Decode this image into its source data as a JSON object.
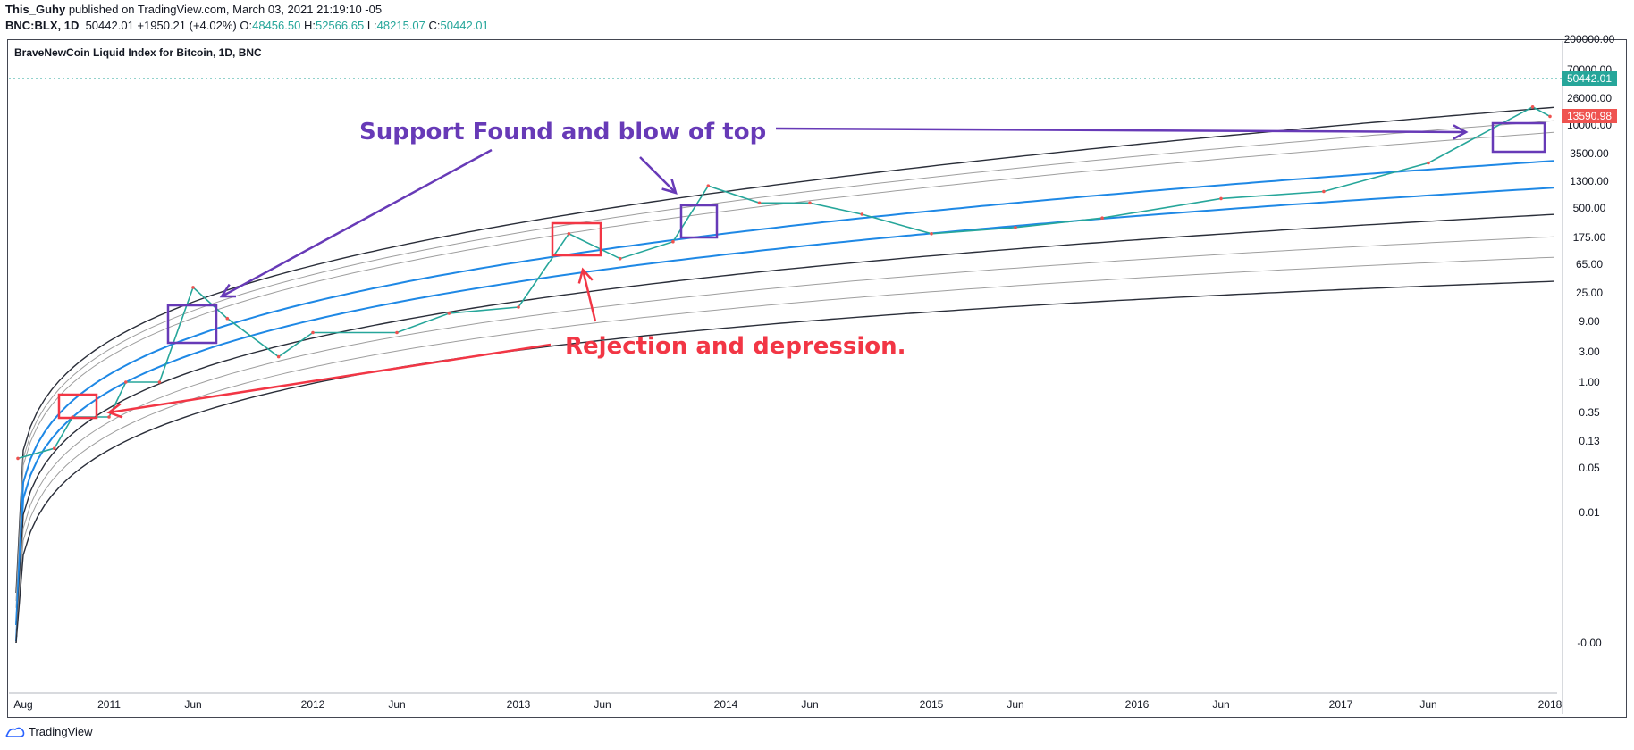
{
  "header": {
    "author": "This_Guhy",
    "published": "published on TradingView.com, March 03, 2021 21:19:10 -05",
    "symbol": "BNC:BLX, 1D",
    "last": "50442.01",
    "change": "+1950.21 (+4.02%)",
    "o_label": "O:",
    "o_val": "48456.50",
    "h_label": "H:",
    "h_val": "52566.65",
    "l_label": "L:",
    "l_val": "48215.07",
    "c_label": "C:",
    "c_val": "50442.01"
  },
  "chart_title": "BraveNewCoin Liquid Index for Bitcoin, 1D, BNC",
  "footer": {
    "brand": "TradingView"
  },
  "colors": {
    "price_up": "#26a69a",
    "price_down": "#ef5350",
    "band_blue": "#1e88e5",
    "band_dark": "#2a2e39",
    "band_gray": "#9e9e9e",
    "annot_purple": "#673ab7",
    "annot_red": "#f23645",
    "price_tag_green": "#26a69a",
    "price_tag_red": "#ef5350"
  },
  "annotations": {
    "support": "Support Found and blow of top",
    "rejection": "Rejection and depression."
  },
  "price_tags": {
    "last": "50442.01",
    "other": "13590.98"
  },
  "chart_data": {
    "type": "line",
    "title": "BraveNewCoin Liquid Index for Bitcoin, 1D, BNC",
    "x_ticks": [
      "Aug",
      "2011",
      "Jun",
      "2012",
      "Jun",
      "2013",
      "Jun",
      "2014",
      "Jun",
      "2015",
      "Jun",
      "2016",
      "Jun",
      "2017",
      "Jun",
      "2018"
    ],
    "y_ticks": [
      "200000.00",
      "70000.00",
      "26000.00",
      "10000.00",
      "3500.00",
      "1300.00",
      "500.00",
      "175.00",
      "65.00",
      "25.00",
      "9.00",
      "3.00",
      "1.00",
      "0.35",
      "0.13",
      "0.05",
      "0.01",
      "-0.00"
    ],
    "y_scale": "log",
    "series": [
      {
        "values": [
          {
            "x": "2010-08",
            "y": 0.07
          },
          {
            "x": "2010-10",
            "y": 0.1
          },
          {
            "x": "2010-11",
            "y": 0.3
          },
          {
            "x": "2011-01",
            "y": 0.3
          },
          {
            "x": "2011-02",
            "y": 1.0
          },
          {
            "x": "2011-04",
            "y": 1.0
          },
          {
            "x": "2011-06",
            "y": 30
          },
          {
            "x": "2011-08",
            "y": 10
          },
          {
            "x": "2011-11",
            "y": 2.5
          },
          {
            "x": "2012-01",
            "y": 6
          },
          {
            "x": "2012-06",
            "y": 6
          },
          {
            "x": "2012-09",
            "y": 12
          },
          {
            "x": "2013-01",
            "y": 15
          },
          {
            "x": "2013-04",
            "y": 200
          },
          {
            "x": "2013-07",
            "y": 80
          },
          {
            "x": "2013-10",
            "y": 150
          },
          {
            "x": "2013-12",
            "y": 1100
          },
          {
            "x": "2014-03",
            "y": 600
          },
          {
            "x": "2014-06",
            "y": 600
          },
          {
            "x": "2014-09",
            "y": 400
          },
          {
            "x": "2015-01",
            "y": 200
          },
          {
            "x": "2015-06",
            "y": 250
          },
          {
            "x": "2015-11",
            "y": 350
          },
          {
            "x": "2016-06",
            "y": 700
          },
          {
            "x": "2016-12",
            "y": 900
          },
          {
            "x": "2017-06",
            "y": 2500
          },
          {
            "x": "2017-12",
            "y": 19000
          },
          {
            "x": "2018-01",
            "y": 13590.98
          }
        ]
      }
    ]
  }
}
